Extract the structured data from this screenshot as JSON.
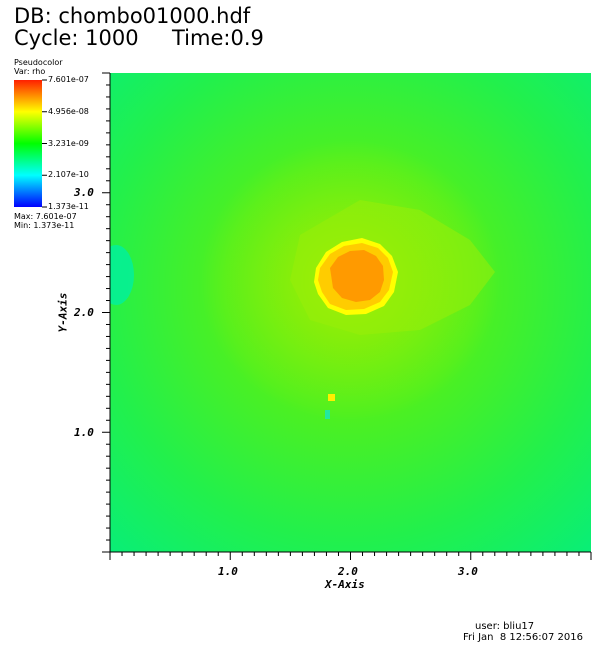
{
  "header": {
    "db_label": "DB: chombo01000.hdf",
    "cycle_label": "Cycle: 1000",
    "time_label": "Time:0.9"
  },
  "legend": {
    "title": "Pseudocolor",
    "var_label": "Var: rho",
    "ticks": [
      "7.601e-07",
      "4.956e-08",
      "3.231e-09",
      "2.107e-10",
      "1.373e-11"
    ],
    "max_label": "Max:  7.601e-07",
    "min_label": "Min:  1.373e-11",
    "colors": [
      "#ff0000",
      "#ffff00",
      "#00ff00",
      "#00ffff",
      "#0000ff"
    ]
  },
  "chart_data": {
    "type": "heatmap",
    "variable": "rho",
    "xlabel": "X-Axis",
    "ylabel": "Y-Axis",
    "xlim": [
      0,
      4
    ],
    "ylim": [
      0,
      4
    ],
    "xticks": [
      "1.0",
      "2.0",
      "3.0"
    ],
    "yticks": [
      "1.0",
      "2.0",
      "3.0"
    ],
    "value_range": [
      1.373e-11,
      7.601e-07
    ],
    "log_scale": true,
    "features": {
      "dense_core_center": [
        2.1,
        2.3
      ],
      "background_colors": [
        "#00f060",
        "#33f030",
        "#66f020"
      ],
      "core_colors": [
        "#ff9000",
        "#ffd000",
        "#ffff00"
      ]
    }
  },
  "footer": {
    "user_label": "user: bliu17",
    "date_label": "Fri Jan  8 12:56:07 2016"
  }
}
